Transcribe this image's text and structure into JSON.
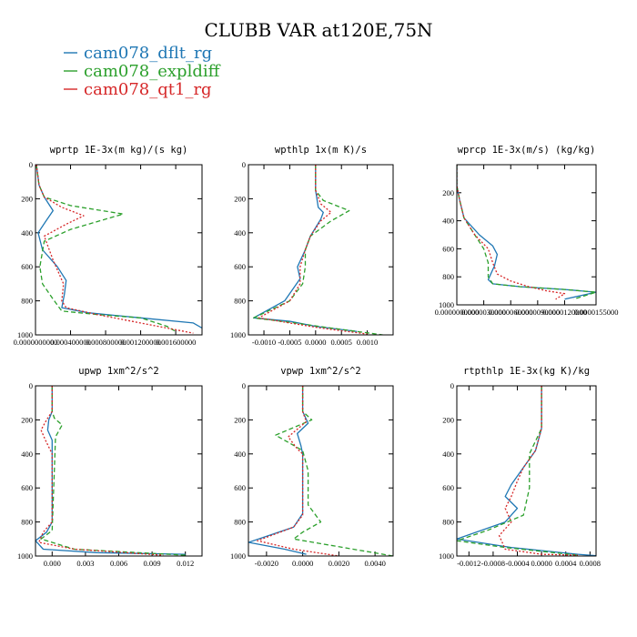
{
  "title": "CLUBB VAR at120E,75N",
  "legend": [
    {
      "label": "cam078_dflt_rg",
      "color": "#1f77b4",
      "dash": ""
    },
    {
      "label": "cam078_expldiff",
      "color": "#2ca02c",
      "dash": "5,3"
    },
    {
      "label": "cam078_qt1_rg",
      "color": "#d62728",
      "dash": "2,2"
    }
  ],
  "chart_data": [
    {
      "type": "line",
      "title": "wprtp  1E-3x(m kg)/(s kg)",
      "xlim": [
        0,
        0.0019
      ],
      "ylim": [
        0,
        1000
      ],
      "xticks": [
        {
          "value": 0.0,
          "label": "0.0000000000"
        },
        {
          "value": 0.0004,
          "label": "0.000400000"
        },
        {
          "value": 0.0008,
          "label": "0.000800000"
        },
        {
          "value": 0.0012,
          "label": "0.001200000"
        },
        {
          "value": 0.0016,
          "label": "0.001600000"
        }
      ],
      "yticks": [
        0,
        200,
        400,
        600,
        800,
        1000
      ],
      "series": [
        {
          "name": "cam078_dflt_rg",
          "x": [
            1e-05,
            4e-05,
            0.0001,
            0.0002,
            0.00012,
            3e-05,
            8e-05,
            0.00025,
            0.00035,
            0.00033,
            0.0003,
            0.0006,
            0.0012,
            0.0018,
            0.0019
          ],
          "y": [
            0,
            120,
            190,
            270,
            330,
            400,
            500,
            600,
            680,
            760,
            840,
            870,
            900,
            930,
            960
          ]
        },
        {
          "name": "cam078_expldiff",
          "x": [
            1e-05,
            4e-05,
            0.0001,
            0.0004,
            0.001,
            0.0004,
            0.0001,
            5e-05,
            8e-05,
            0.0002,
            0.0003,
            0.0007,
            0.0012,
            0.0015,
            0.0016
          ],
          "y": [
            0,
            120,
            190,
            240,
            290,
            380,
            450,
            600,
            700,
            790,
            860,
            880,
            900,
            950,
            980
          ]
        },
        {
          "name": "cam078_qt1_rg",
          "x": [
            1e-05,
            4e-05,
            0.0001,
            0.0003,
            0.00055,
            0.00035,
            0.0001,
            0.0002,
            0.00032,
            0.0003,
            0.00035,
            0.0007,
            0.001,
            0.0015,
            0.0018
          ],
          "y": [
            0,
            120,
            190,
            250,
            300,
            350,
            420,
            560,
            700,
            800,
            840,
            880,
            910,
            960,
            990
          ]
        }
      ]
    },
    {
      "type": "line",
      "title": "wpthlp  1x(m K)/s",
      "xlim": [
        -0.0013,
        0.0015
      ],
      "ylim": [
        0,
        1000
      ],
      "xticks": [
        {
          "value": -0.001,
          "label": "-0.0010"
        },
        {
          "value": -0.0005,
          "label": "-0.0005"
        },
        {
          "value": 0.0,
          "label": "0.0000"
        },
        {
          "value": 0.0005,
          "label": "0.0005"
        },
        {
          "value": 0.001,
          "label": "0.0010"
        }
      ],
      "yticks": [
        0,
        200,
        400,
        600,
        800,
        1000
      ],
      "series": [
        {
          "name": "cam078_dflt_rg",
          "x": [
            0.0,
            0.0,
            5e-05,
            0.00015,
            0.0001,
            -0.0001,
            -0.0002,
            -0.00035,
            -0.0003,
            -0.0006,
            -0.0012,
            -0.0005,
            0.0,
            0.0008
          ],
          "y": [
            0,
            150,
            250,
            280,
            320,
            420,
            500,
            600,
            670,
            800,
            900,
            920,
            950,
            980
          ]
        },
        {
          "name": "cam078_expldiff",
          "x": [
            0.0,
            0.0,
            0.00015,
            0.00065,
            0.0003,
            -0.0001,
            -0.0002,
            -0.0002,
            -0.00025,
            -0.0005,
            -0.0012,
            -0.0004,
            0.0003,
            0.0013
          ],
          "y": [
            0,
            150,
            210,
            270,
            330,
            420,
            500,
            600,
            700,
            800,
            900,
            930,
            960,
            1000
          ]
        },
        {
          "name": "cam078_qt1_rg",
          "x": [
            0.0,
            0.0,
            0.0001,
            0.0003,
            0.0001,
            -0.0001,
            -0.0002,
            -0.0003,
            -0.0003,
            -0.0005,
            -0.0011,
            -0.0005,
            0.0001,
            0.001
          ],
          "y": [
            0,
            150,
            230,
            280,
            330,
            420,
            500,
            600,
            700,
            800,
            900,
            930,
            960,
            995
          ]
        }
      ]
    },
    {
      "type": "line",
      "title": "wprcp  1E-3x(m/s) (kg/kg)",
      "xlim": [
        0,
        1.55e-05
      ],
      "ylim": [
        0,
        1000
      ],
      "xticks": [
        {
          "value": 0.0,
          "label": "0.0000000000"
        },
        {
          "value": 3e-06,
          "label": "0.0000030000"
        },
        {
          "value": 6e-06,
          "label": "0.0000060000"
        },
        {
          "value": 9e-06,
          "label": "0.0000090000"
        },
        {
          "value": 1.2e-05,
          "label": "0.0000120000"
        },
        {
          "value": 1.55e-05,
          "label": "0.0000155000"
        }
      ],
      "yticks": [
        200,
        400,
        600,
        800,
        1000
      ],
      "series": [
        {
          "name": "cam078_dflt_rg",
          "x": [
            0.0,
            0.0,
            3e-07,
            8e-07,
            2.5e-06,
            4e-06,
            4.5e-06,
            4.2e-06,
            3.5e-06,
            4e-06,
            7e-06,
            1.2e-05,
            1.55e-05,
            1.2e-05
          ],
          "y": [
            0,
            150,
            250,
            380,
            500,
            580,
            640,
            720,
            820,
            850,
            870,
            890,
            910,
            960
          ]
        },
        {
          "name": "cam078_expldiff",
          "x": [
            0.0,
            0.0,
            3e-07,
            8e-07,
            2e-06,
            3e-06,
            3.5e-06,
            3.5e-06,
            4e-06,
            7e-06,
            1.2e-05,
            1.55e-05,
            1.3e-05
          ],
          "y": [
            0,
            150,
            250,
            380,
            500,
            600,
            700,
            800,
            850,
            870,
            890,
            910,
            960
          ]
        },
        {
          "name": "cam078_qt1_rg",
          "x": [
            0.0,
            0.0,
            3e-07,
            8e-07,
            2e-06,
            3.5e-06,
            4e-06,
            4.5e-06,
            6e-06,
            8e-06,
            1e-05,
            1.2e-05,
            1.1e-05
          ],
          "y": [
            0,
            150,
            250,
            380,
            500,
            600,
            700,
            780,
            830,
            870,
            900,
            920,
            960
          ]
        }
      ]
    },
    {
      "type": "line",
      "title": "upwp  1xm^2/s^2",
      "xlim": [
        -0.0015,
        0.0135
      ],
      "ylim": [
        0,
        1000
      ],
      "xticks": [
        {
          "value": 0.0,
          "label": "0.000"
        },
        {
          "value": 0.003,
          "label": "0.003"
        },
        {
          "value": 0.006,
          "label": "0.006"
        },
        {
          "value": 0.009,
          "label": "0.009"
        },
        {
          "value": 0.012,
          "label": "0.012"
        }
      ],
      "yticks": [
        0,
        200,
        400,
        600,
        800,
        1000
      ],
      "series": [
        {
          "name": "cam078_dflt_rg",
          "x": [
            0.0,
            0.0,
            -0.0003,
            -0.0004,
            0.0,
            0.0,
            -0.0005,
            -0.0015,
            -0.0008,
            0.004,
            0.012
          ],
          "y": [
            0,
            150,
            200,
            260,
            320,
            800,
            860,
            910,
            960,
            980,
            990
          ]
        },
        {
          "name": "cam078_expldiff",
          "x": [
            0.0,
            0.0,
            0.0002,
            0.0009,
            0.0003,
            0.0002,
            0.0,
            -0.001,
            0.002,
            0.012
          ],
          "y": [
            0,
            150,
            190,
            230,
            300,
            500,
            850,
            900,
            960,
            995
          ]
        },
        {
          "name": "cam078_qt1_rg",
          "x": [
            0.0,
            0.0,
            -0.0005,
            -0.001,
            -0.0006,
            0.0,
            0.0,
            -0.0008,
            -0.0012,
            0.002,
            0.01
          ],
          "y": [
            0,
            150,
            200,
            260,
            320,
            400,
            800,
            860,
            920,
            960,
            995
          ]
        }
      ]
    },
    {
      "type": "line",
      "title": "vpwp  1xm^2/s^2",
      "xlim": [
        -0.003,
        0.005
      ],
      "ylim": [
        0,
        1000
      ],
      "xticks": [
        {
          "value": -0.002,
          "label": "-0.0020"
        },
        {
          "value": 0.0,
          "label": "0.0000"
        },
        {
          "value": 0.002,
          "label": "0.0020"
        },
        {
          "value": 0.004,
          "label": "0.0040"
        }
      ],
      "yticks": [
        0,
        200,
        400,
        600,
        800,
        1000
      ],
      "series": [
        {
          "name": "cam078_dflt_rg",
          "x": [
            0.0,
            0.0,
            0.0003,
            -0.0003,
            -0.0001,
            0.0,
            0.0,
            -0.0005,
            -0.003,
            -0.001,
            0.0002
          ],
          "y": [
            0,
            150,
            220,
            280,
            350,
            400,
            750,
            830,
            920,
            960,
            990
          ]
        },
        {
          "name": "cam078_expldiff",
          "x": [
            0.0,
            0.0,
            0.0005,
            -0.0015,
            0.0,
            0.0003,
            0.0003,
            0.001,
            0.0,
            -0.0005,
            0.005
          ],
          "y": [
            0,
            150,
            200,
            290,
            380,
            500,
            700,
            800,
            860,
            900,
            1000
          ]
        },
        {
          "name": "cam078_qt1_rg",
          "x": [
            0.0,
            0.0,
            0.0002,
            -0.0008,
            -0.0003,
            0.0,
            0.0,
            -0.0005,
            -0.0025,
            -0.0005,
            0.002
          ],
          "y": [
            0,
            150,
            210,
            300,
            370,
            400,
            760,
            830,
            910,
            960,
            1000
          ]
        }
      ]
    },
    {
      "type": "line",
      "title": "rtpthlp  1E-3x(kg K)/kg",
      "xlim": [
        -0.0014,
        0.0009
      ],
      "ylim": [
        0,
        1000
      ],
      "xticks": [
        {
          "value": -0.0012,
          "label": "-0.0012"
        },
        {
          "value": -0.0008,
          "label": "-0.0008"
        },
        {
          "value": -0.0004,
          "label": "-0.0004"
        },
        {
          "value": 0.0,
          "label": "0.0000"
        },
        {
          "value": 0.0004,
          "label": "0.0004"
        },
        {
          "value": 0.0008,
          "label": "0.0008"
        }
      ],
      "yticks": [
        0,
        200,
        400,
        600,
        800,
        1000
      ],
      "series": [
        {
          "name": "cam078_dflt_rg",
          "x": [
            0.0,
            0.0,
            -0.0001,
            -0.0003,
            -0.0005,
            -0.0006,
            -0.0004,
            -0.0006,
            -0.0014,
            -0.0005,
            0.0006,
            0.0009
          ],
          "y": [
            0,
            250,
            380,
            480,
            580,
            650,
            720,
            800,
            900,
            950,
            990,
            998
          ]
        },
        {
          "name": "cam078_expldiff",
          "x": [
            0.0,
            0.0,
            -0.0002,
            -0.0002,
            -0.0003,
            -0.0009,
            -0.0014,
            -0.0006,
            0.0006
          ],
          "y": [
            0,
            250,
            400,
            600,
            760,
            850,
            910,
            950,
            995
          ]
        },
        {
          "name": "cam078_qt1_rg",
          "x": [
            0.0,
            0.0,
            -0.0001,
            -0.0003,
            -0.0004,
            -0.0005,
            -0.0006,
            -0.0005,
            -0.0007,
            -0.0006,
            0.0,
            0.0006
          ],
          "y": [
            0,
            250,
            380,
            480,
            560,
            650,
            720,
            800,
            880,
            960,
            990,
            995
          ]
        }
      ]
    }
  ]
}
